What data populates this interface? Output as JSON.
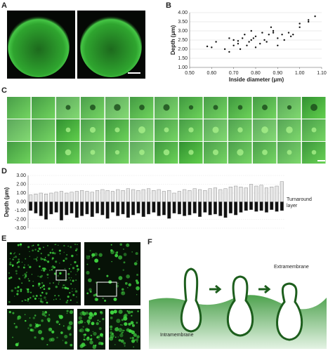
{
  "panel_labels": [
    "A",
    "B",
    "C",
    "D",
    "E",
    "F"
  ],
  "chart_data": [
    {
      "type": "scatter",
      "xlabel": "Inside diameter (μm)",
      "ylabel": "Depth (μm)",
      "color": "#111111",
      "x": [
        0.58,
        0.6,
        0.62,
        0.66,
        0.68,
        0.68,
        0.7,
        0.7,
        0.72,
        0.72,
        0.73,
        0.74,
        0.75,
        0.76,
        0.77,
        0.78,
        0.78,
        0.79,
        0.8,
        0.8,
        0.82,
        0.83,
        0.84,
        0.85,
        0.86,
        0.87,
        0.88,
        0.88,
        0.9,
        0.9,
        0.92,
        0.93,
        0.95,
        0.96,
        0.97,
        1.0,
        1.0,
        1.04,
        1.04,
        1.07
      ],
      "values": [
        2.15,
        2.1,
        2.4,
        2.0,
        2.6,
        1.85,
        2.2,
        2.5,
        2.45,
        2.3,
        2.0,
        2.6,
        2.8,
        2.2,
        2.4,
        2.5,
        3.0,
        2.6,
        2.1,
        2.7,
        2.3,
        2.9,
        2.5,
        2.4,
        2.8,
        3.2,
        2.9,
        3.0,
        2.6,
        2.2,
        2.8,
        2.5,
        2.9,
        2.7,
        2.8,
        3.4,
        3.2,
        3.6,
        3.5,
        3.8
      ],
      "xlim": [
        0.5,
        1.1
      ],
      "xticks": [
        {
          "value": 0.5,
          "label": "0.50"
        },
        {
          "value": 0.6,
          "label": "0.60"
        },
        {
          "value": 0.7,
          "label": "0.70"
        },
        {
          "value": 0.8,
          "label": "0.80"
        },
        {
          "value": 0.9,
          "label": "0.90"
        },
        {
          "value": 1.0,
          "label": "1.00"
        },
        {
          "value": 1.1,
          "label": "1.10"
        }
      ],
      "ylim": [
        1,
        4
      ],
      "yticks": [
        {
          "value": 1,
          "label": "1.00"
        },
        {
          "value": 1.5,
          "label": "1.50"
        },
        {
          "value": 2,
          "label": "2.00"
        },
        {
          "value": 2.5,
          "label": "2.50"
        },
        {
          "value": 3,
          "label": "3.00"
        },
        {
          "value": 3.5,
          "label": "3.50"
        },
        {
          "value": 4,
          "label": "4.00"
        }
      ],
      "grid": true
    },
    {
      "type": "bar",
      "ylabel": "Depth (μm)",
      "annotation": "Turnaround layer",
      "categories": [
        null,
        null,
        null,
        null,
        null,
        null,
        null,
        null,
        null,
        null,
        null,
        null,
        null,
        null,
        null,
        null,
        null,
        null,
        null,
        null,
        null,
        null,
        null,
        null,
        null,
        null,
        null,
        null,
        null,
        null,
        null,
        null,
        null,
        null,
        null,
        null,
        null,
        null,
        null,
        null,
        null,
        null,
        null,
        null,
        null,
        null,
        null,
        null,
        null,
        null
      ],
      "series": [
        {
          "color": "#e6e6e6",
          "values": [
            0.8,
            0.9,
            1.0,
            0.9,
            1.0,
            1.1,
            1.2,
            1.0,
            1.1,
            1.2,
            1.3,
            1.2,
            1.1,
            1.3,
            1.4,
            1.3,
            1.2,
            1.4,
            1.3,
            1.5,
            1.4,
            1.3,
            1.4,
            1.5,
            1.3,
            1.4,
            1.2,
            1.3,
            1.0,
            1.2,
            1.4,
            1.3,
            1.5,
            1.4,
            1.3,
            1.5,
            1.6,
            1.4,
            1.5,
            1.7,
            1.8,
            1.7,
            1.6,
            2.0,
            1.8,
            1.9,
            1.6,
            1.7,
            1.8,
            2.3
          ]
        },
        {
          "color": "#111111",
          "values": [
            -1.0,
            -1.3,
            -1.6,
            -2.0,
            -1.4,
            -1.2,
            -2.1,
            -1.5,
            -1.3,
            -1.8,
            -1.6,
            -1.4,
            -1.7,
            -1.3,
            -1.5,
            -1.9,
            -1.2,
            -1.6,
            -1.4,
            -1.8,
            -1.5,
            -1.3,
            -1.7,
            -1.4,
            -1.2,
            -1.6,
            -1.5,
            -1.9,
            -1.3,
            -1.4,
            -1.6,
            -1.5,
            -1.3,
            -1.7,
            -1.2,
            -1.5,
            -1.4,
            -1.6,
            -1.8,
            -1.3,
            -1.5,
            -1.2,
            -1.0,
            -0.9,
            -1.1,
            -1.0,
            -1.2,
            -0.9,
            -1.1,
            -1.0
          ]
        }
      ],
      "ylim": [
        -3,
        3
      ],
      "yticks": [
        {
          "value": -3,
          "label": "-3.00"
        },
        {
          "value": -2,
          "label": "-2.00"
        },
        {
          "value": -1,
          "label": "-1.00"
        },
        {
          "value": 0,
          "label": "0.00"
        },
        {
          "value": 1,
          "label": "1.00"
        },
        {
          "value": 2,
          "label": "2.00"
        },
        {
          "value": 3,
          "label": "3.00"
        }
      ],
      "grid": true
    }
  ],
  "diagram": {
    "top_label": "Extramembrane",
    "bottom_label": "Intramembrane"
  }
}
